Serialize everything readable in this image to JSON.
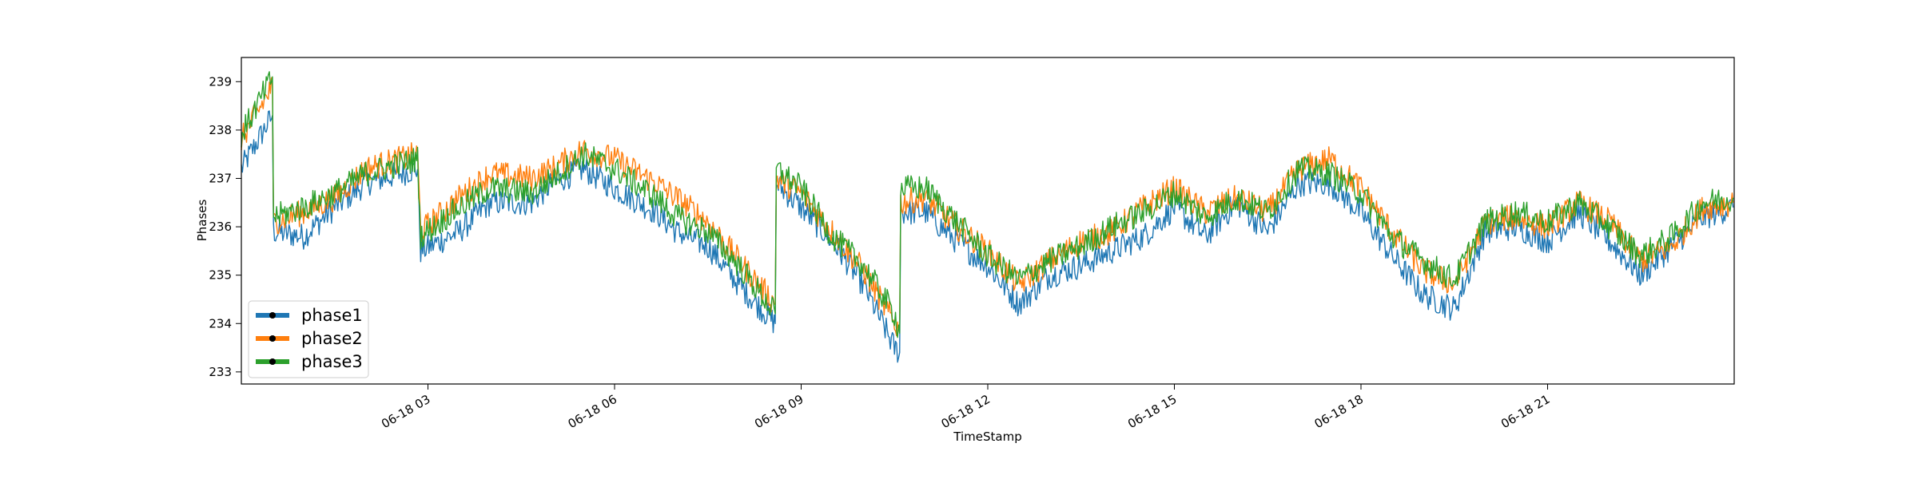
{
  "chart_data": {
    "type": "line",
    "title": "",
    "xlabel": "TimeStamp",
    "ylabel": "Phases",
    "xlim": [
      "06-18 00:00",
      "06-19 00:00"
    ],
    "ylim": [
      232.75,
      239.5
    ],
    "grid": false,
    "legend_position": "lower-left",
    "x_ticks": [
      {
        "label": "06-18 03",
        "hour": 3
      },
      {
        "label": "06-18 06",
        "hour": 6
      },
      {
        "label": "06-18 09",
        "hour": 9
      },
      {
        "label": "06-18 12",
        "hour": 12
      },
      {
        "label": "06-18 15",
        "hour": 15
      },
      {
        "label": "06-18 18",
        "hour": 18
      },
      {
        "label": "06-18 21",
        "hour": 21
      }
    ],
    "y_ticks": [
      233,
      234,
      235,
      236,
      237,
      238,
      239
    ],
    "x": [
      "00:00",
      "00:30",
      "00:31",
      "01:00",
      "01:30",
      "02:00",
      "02:50",
      "02:53",
      "03:30",
      "04:00",
      "04:40",
      "05:00",
      "05:30",
      "06:00",
      "06:40",
      "07:00",
      "07:30",
      "08:00",
      "08:35",
      "08:36",
      "09:00",
      "09:30",
      "10:00",
      "10:30",
      "10:35",
      "10:36",
      "11:00",
      "11:30",
      "12:00",
      "12:30",
      "13:00",
      "13:30",
      "14:00",
      "14:30",
      "15:00",
      "15:30",
      "16:00",
      "16:30",
      "17:00",
      "17:30",
      "18:00",
      "18:30",
      "19:00",
      "19:30",
      "20:00",
      "20:30",
      "21:00",
      "21:30",
      "22:00",
      "22:30",
      "23:00",
      "23:30",
      "23:59"
    ],
    "series": [
      {
        "name": "phase1",
        "color": "#1f77b4",
        "values": [
          237.2,
          238.3,
          235.9,
          235.8,
          236.4,
          236.9,
          237.2,
          235.5,
          235.9,
          236.5,
          236.5,
          236.9,
          237.2,
          236.8,
          236.3,
          235.9,
          235.6,
          234.8,
          234.0,
          236.9,
          236.4,
          235.7,
          234.8,
          233.5,
          233.4,
          236.3,
          236.3,
          235.7,
          235.2,
          234.4,
          235.0,
          235.2,
          235.5,
          235.8,
          236.4,
          235.8,
          236.5,
          235.9,
          236.9,
          236.9,
          236.3,
          235.4,
          234.6,
          234.3,
          235.9,
          236.0,
          235.7,
          236.3,
          235.7,
          235.0,
          235.6,
          236.2,
          236.4
        ]
      },
      {
        "name": "phase2",
        "color": "#ff7f0e",
        "values": [
          237.8,
          238.9,
          236.1,
          236.3,
          236.6,
          237.2,
          237.5,
          235.9,
          236.6,
          237.1,
          237.0,
          237.2,
          237.6,
          237.4,
          236.9,
          236.6,
          236.1,
          235.3,
          234.4,
          237.0,
          236.7,
          235.9,
          235.1,
          234.0,
          233.9,
          236.5,
          236.6,
          236.0,
          235.5,
          234.8,
          235.3,
          235.7,
          235.9,
          236.4,
          236.8,
          236.3,
          236.6,
          236.3,
          237.2,
          237.4,
          236.8,
          235.9,
          235.1,
          234.8,
          236.1,
          236.2,
          236.0,
          236.5,
          236.1,
          235.3,
          235.6,
          236.4,
          236.5
        ]
      },
      {
        "name": "phase3",
        "color": "#2ca02c",
        "values": [
          237.9,
          239.1,
          236.2,
          236.4,
          236.7,
          237.1,
          237.4,
          235.8,
          236.4,
          236.8,
          236.7,
          237.0,
          237.5,
          237.2,
          236.6,
          236.2,
          235.9,
          235.2,
          234.2,
          237.2,
          236.8,
          235.8,
          235.2,
          234.2,
          233.8,
          236.8,
          236.8,
          236.1,
          235.4,
          234.9,
          235.3,
          235.6,
          236.0,
          236.3,
          236.7,
          236.2,
          236.6,
          236.3,
          237.2,
          237.1,
          236.7,
          235.8,
          235.3,
          234.9,
          236.1,
          236.3,
          236.1,
          236.5,
          236.0,
          235.4,
          235.8,
          236.5,
          236.6
        ]
      }
    ]
  }
}
